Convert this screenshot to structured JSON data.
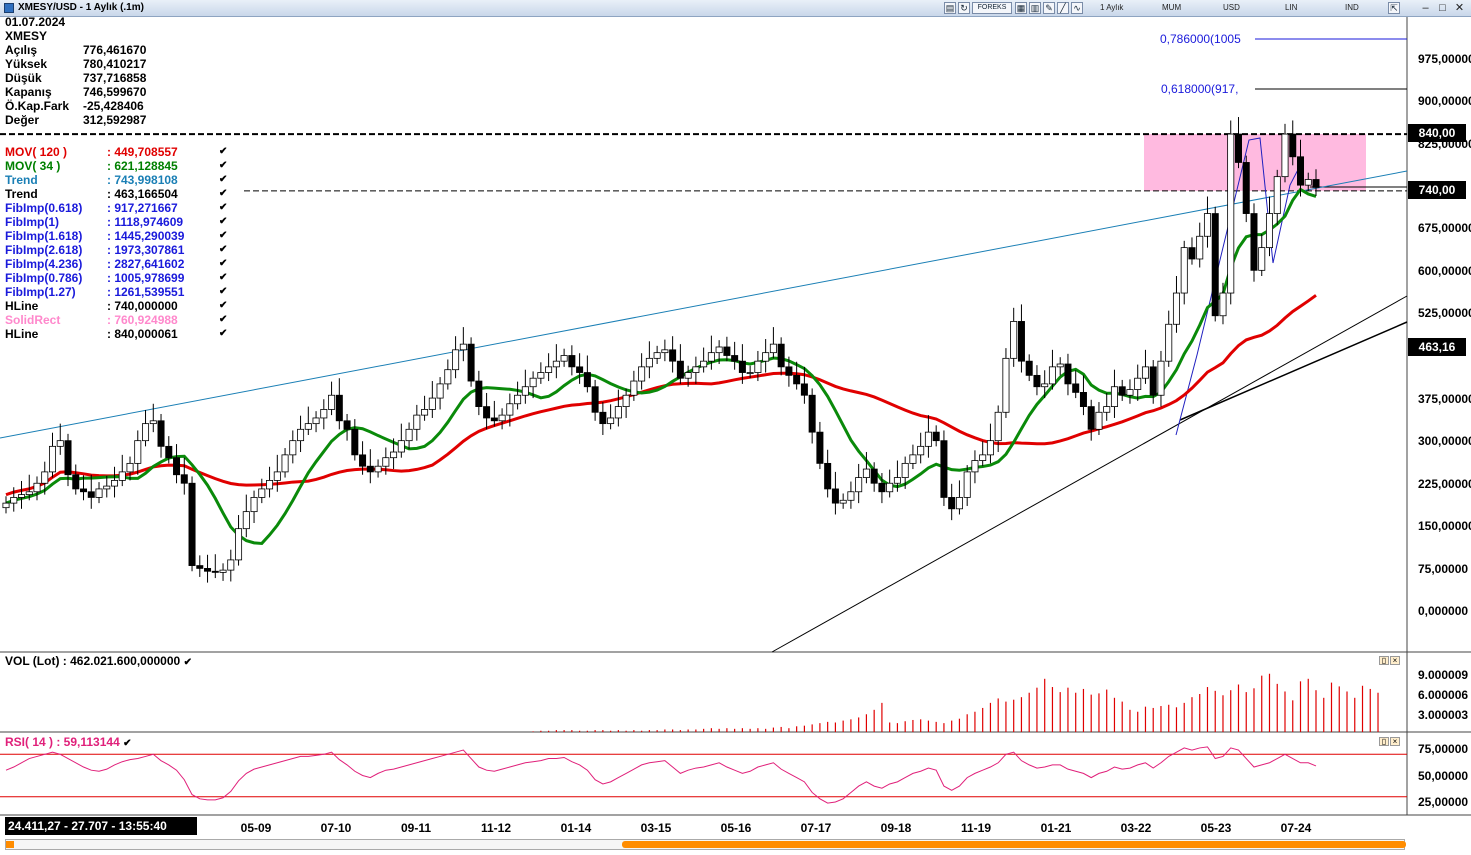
{
  "window": {
    "title": "XMESY/USD - 1 Aylık (.1m)",
    "toolbar": {
      "period": "1 Aylık",
      "style": "MUM",
      "currency": "USD",
      "scale": "LIN",
      "mode": "IND",
      "forex_label": "FOREKS"
    }
  },
  "ohlc": {
    "date": "01.07.2024",
    "symbol": "XMESY",
    "rows": [
      {
        "label": "Açılış",
        "value": "776,461670"
      },
      {
        "label": "Yüksek",
        "value": "780,410217"
      },
      {
        "label": "Düşük",
        "value": "737,716858"
      },
      {
        "label": "Kapanış",
        "value": "746,599670"
      },
      {
        "label": "Ö.Kap.Fark",
        "value": "-25,428406"
      },
      {
        "label": "Değer",
        "value": "312,592987"
      }
    ]
  },
  "indicators": [
    {
      "label": "MOV( 120 )",
      "value": ": 449,708557",
      "color": "#e00000"
    },
    {
      "label": "MOV( 34 )",
      "value": ": 621,128845",
      "color": "#008000"
    },
    {
      "label": "Trend",
      "value": ": 743,998108",
      "color": "#1a7fb5"
    },
    {
      "label": "Trend",
      "value": ": 463,166504",
      "color": "#000000"
    },
    {
      "label": "FibImp(0.618)",
      "value": ": 917,271667",
      "color": "#1a1adb"
    },
    {
      "label": "FibImp(1)",
      "value": ": 1118,974609",
      "color": "#1a1adb"
    },
    {
      "label": "FibImp(1.618)",
      "value": ": 1445,290039",
      "color": "#1a1adb"
    },
    {
      "label": "FibImp(2.618)",
      "value": ": 1973,307861",
      "color": "#1a1adb"
    },
    {
      "label": "FibImp(4.236)",
      "value": ": 2827,641602",
      "color": "#1a1adb"
    },
    {
      "label": "FibImp(0.786)",
      "value": ": 1005,978699",
      "color": "#1a1adb"
    },
    {
      "label": "FibImp(1.27)",
      "value": ": 1261,539551",
      "color": "#1a1adb"
    },
    {
      "label": "HLine",
      "value": ": 740,000000",
      "color": "#000000"
    },
    {
      "label": "SolidRect",
      "value": ": 760,924988",
      "color": "#ff88cc"
    },
    {
      "label": "HLine",
      "value": ": 840,000061",
      "color": "#000000"
    }
  ],
  "fib_labels": {
    "f786": "0,786000(1005",
    "f618": "0,618000(917,"
  },
  "price_axis": [
    "975,00000",
    "900,00000",
    "825,00000",
    "675,00000",
    "600,00000",
    "525,00000",
    "375,00000",
    "300,00000",
    "225,00000",
    "150,00000",
    "75,00000",
    "0,000000"
  ],
  "price_badges": {
    "hline_top": "840,00",
    "hline_mid": "740,00",
    "trend_val": "463,16"
  },
  "volume": {
    "title": "VOL (Lot)  : 462.021.600,000000",
    "axis": [
      "9.000009",
      "6.000006",
      "3.000003"
    ]
  },
  "rsi": {
    "title": "RSI( 14 )   : 59,113144",
    "axis": [
      "75,00000",
      "50,00000",
      "25,00000"
    ]
  },
  "date_axis": [
    "05-09",
    "07-10",
    "09-11",
    "11-12",
    "01-14",
    "03-15",
    "05-16",
    "07-17",
    "09-18",
    "11-19",
    "01-21",
    "03-22",
    "05-23",
    "07-24"
  ],
  "status": "24.411,27 - 27.707 - 13:55:40",
  "colors": {
    "up": "#ffffff",
    "down": "#000000",
    "mov120": "#e00000",
    "mov34": "#0a8a0a",
    "trend_up": "#1a7fb5",
    "rect": "#ffb3dd",
    "rsi_line": "#e0207a",
    "vol": "#e00000"
  },
  "chart_data": {
    "type": "candlestick",
    "title": "XMESY/USD - 1 Aylık (.1m)",
    "y_range": [
      -30,
      1060
    ],
    "hlines": [
      840,
      740
    ],
    "rect": {
      "y_from": 740,
      "y_to": 840
    },
    "fib_levels": [
      {
        "label": "0,786000(1005",
        "value": 1005.98
      },
      {
        "label": "0,618000(917,",
        "value": 917.27
      }
    ],
    "x_ticks": [
      "05-09",
      "07-10",
      "09-11",
      "11-12",
      "01-14",
      "03-15",
      "05-16",
      "07-17",
      "09-18",
      "11-19",
      "01-21",
      "03-22",
      "05-23",
      "07-24"
    ],
    "close_series": [
      190,
      200,
      205,
      210,
      225,
      245,
      290,
      300,
      240,
      215,
      210,
      200,
      215,
      220,
      230,
      245,
      260,
      300,
      330,
      335,
      290,
      270,
      240,
      225,
      80,
      75,
      70,
      68,
      72,
      90,
      145,
      175,
      200,
      215,
      230,
      245,
      275,
      300,
      320,
      330,
      340,
      355,
      380,
      335,
      320,
      275,
      255,
      245,
      255,
      270,
      280,
      300,
      320,
      345,
      355,
      375,
      400,
      425,
      460,
      470,
      405,
      360,
      340,
      335,
      345,
      365,
      380,
      395,
      410,
      420,
      430,
      440,
      450,
      430,
      420,
      395,
      350,
      330,
      340,
      360,
      380,
      405,
      430,
      445,
      455,
      460,
      440,
      410,
      420,
      430,
      440,
      455,
      465,
      450,
      440,
      420,
      420,
      440,
      455,
      470,
      430,
      415,
      400,
      380,
      315,
      260,
      215,
      190,
      195,
      210,
      235,
      250,
      225,
      210,
      225,
      235,
      260,
      275,
      290,
      315,
      300,
      200,
      180,
      200,
      245,
      265,
      275,
      300,
      350,
      445,
      510,
      440,
      415,
      395,
      400,
      430,
      435,
      400,
      385,
      360,
      320,
      350,
      360,
      395,
      380,
      390,
      410,
      430,
      380,
      440,
      505,
      560,
      640,
      620,
      660,
      700,
      520,
      560,
      840,
      790,
      700,
      600,
      640,
      700,
      765,
      840,
      800,
      750,
      760,
      746
    ],
    "mov34_series_end": 621.13,
    "mov120_series_end": 449.71,
    "volume_series": [
      0,
      0,
      0,
      0,
      0,
      0,
      0,
      0,
      0,
      0,
      0,
      0,
      0,
      0,
      0,
      0,
      0,
      0,
      0,
      0,
      0,
      0,
      0,
      0,
      0,
      0,
      0,
      0,
      0,
      0,
      0,
      0,
      0,
      0,
      0,
      0,
      0,
      0,
      0,
      0,
      0,
      0,
      0,
      0,
      0,
      0,
      0,
      0,
      0,
      0,
      0,
      0,
      0,
      0,
      0,
      0,
      0,
      0,
      0,
      0,
      0,
      0,
      0,
      0,
      0,
      0,
      0,
      0,
      0.1,
      0.2,
      0.2,
      0.3,
      0.3,
      0.3,
      0.2,
      0.2,
      0.3,
      0.3,
      0.2,
      0.3,
      0.2,
      0.3,
      0.2,
      0.3,
      0.3,
      0.4,
      0.4,
      0.3,
      0.4,
      0.4,
      0.5,
      0.6,
      0.5,
      0.6,
      0.5,
      0.6,
      0.5,
      0.6,
      0.5,
      0.7,
      0.8,
      0.6,
      0.9,
      1.0,
      1.2,
      1.4,
      1.6,
      1.5,
      1.8,
      2.0,
      2.3,
      2.8,
      3.5,
      4.6,
      1.5,
      1.4,
      1.7,
      1.9,
      2.0,
      1.8,
      1.6,
      1.4,
      1.8,
      2.1,
      2.8,
      3.2,
      3.8,
      4.6,
      5.3,
      4.8,
      5.1,
      5.5,
      6.2,
      7.0,
      8.4,
      7.1,
      6.3,
      7.0,
      6.2,
      6.8,
      5.9,
      6.1,
      6.7,
      5.4,
      4.8,
      3.5,
      3.2,
      4.0,
      3.8,
      4.1,
      4.3,
      3.9,
      4.6,
      5.5,
      6.0,
      7.1,
      6.5,
      5.8,
      6.6,
      7.5,
      6.3,
      6.9,
      8.9,
      9.2,
      7.6,
      6.4,
      5.0,
      8.0,
      8.4,
      6.6,
      5.4,
      7.8,
      7.2,
      6.4,
      5.4,
      7.3,
      6.8,
      6.2
    ],
    "rsi_series": [
      55,
      58,
      62,
      66,
      68,
      70,
      72,
      70,
      66,
      62,
      58,
      55,
      54,
      56,
      60,
      63,
      65,
      66,
      68,
      70,
      64,
      60,
      55,
      46,
      32,
      28,
      27,
      27,
      29,
      35,
      45,
      52,
      56,
      58,
      60,
      62,
      64,
      66,
      68,
      68,
      69,
      70,
      72,
      65,
      60,
      54,
      50,
      48,
      52,
      55,
      56,
      58,
      60,
      62,
      64,
      66,
      68,
      70,
      72,
      74,
      66,
      58,
      55,
      54,
      56,
      58,
      60,
      62,
      63,
      64,
      66,
      66,
      67,
      63,
      60,
      55,
      46,
      42,
      44,
      48,
      52,
      56,
      60,
      62,
      63,
      64,
      58,
      52,
      55,
      57,
      58,
      60,
      62,
      58,
      55,
      52,
      54,
      58,
      60,
      62,
      56,
      52,
      48,
      44,
      34,
      28,
      24,
      25,
      28,
      34,
      40,
      44,
      40,
      38,
      42,
      44,
      48,
      52,
      54,
      57,
      55,
      40,
      36,
      40,
      48,
      52,
      55,
      58,
      62,
      70,
      72,
      64,
      60,
      57,
      58,
      60,
      60,
      56,
      54,
      52,
      48,
      52,
      54,
      58,
      56,
      57,
      60,
      62,
      57,
      62,
      68,
      72,
      76,
      74,
      76,
      77,
      66,
      68,
      76,
      74,
      66,
      58,
      60,
      62,
      66,
      70,
      66,
      62,
      62,
      59
    ]
  }
}
